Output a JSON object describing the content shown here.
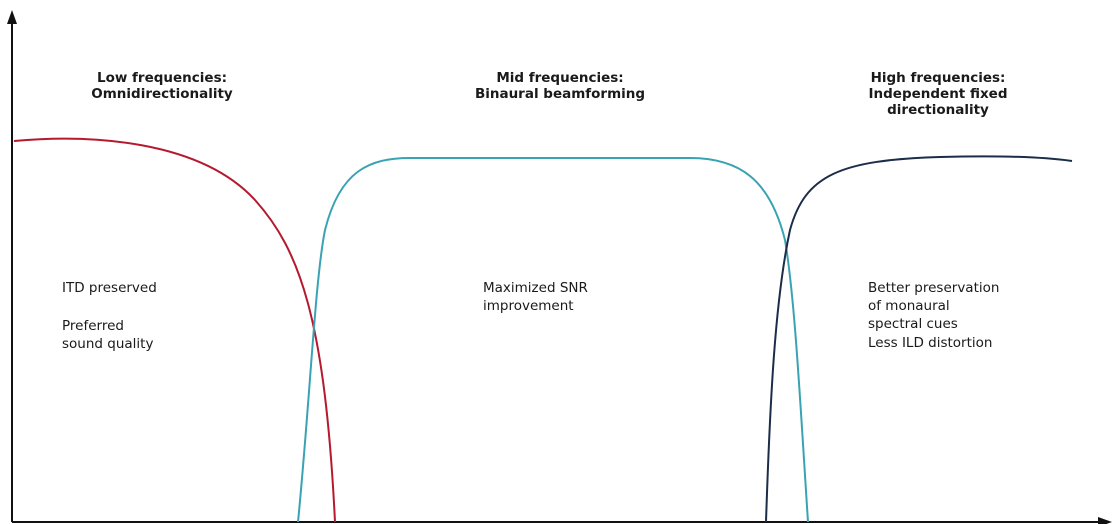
{
  "regions": [
    {
      "title": [
        "Low frequencies:",
        "Omnidirectionality"
      ],
      "body": [
        "ITD preserved",
        "Preferred",
        "sound quality"
      ]
    },
    {
      "title": [
        "Mid frequencies:",
        "Binaural beamforming"
      ],
      "body": [
        "Maximized SNR",
        "improvement"
      ]
    },
    {
      "title": [
        "High frequencies:",
        "Independent fixed",
        "directionality"
      ],
      "body": [
        "Better preservation",
        "of monaural",
        "spectral cues",
        "Less ILD distortion"
      ]
    }
  ]
}
